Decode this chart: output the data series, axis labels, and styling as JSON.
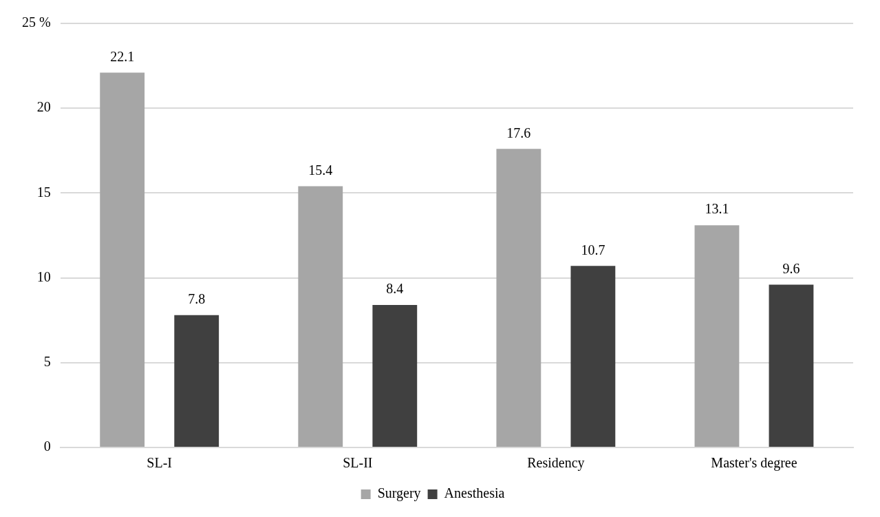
{
  "chart_data": {
    "type": "bar",
    "categories": [
      "SL-I",
      "SL-II",
      "Residency",
      "Master's degree"
    ],
    "series": [
      {
        "name": "Surgery",
        "color": "#a6a6a6",
        "values": [
          22.1,
          15.4,
          17.6,
          13.1
        ]
      },
      {
        "name": "Anesthesia",
        "color": "#404040",
        "values": [
          7.8,
          8.4,
          10.7,
          9.6
        ]
      }
    ],
    "ylim": [
      0,
      25
    ],
    "yticks": [
      0,
      5,
      10,
      15,
      20,
      {
        "value": 25,
        "label": "25 %"
      }
    ],
    "grid": "y",
    "legend": "bottom",
    "data_labels": true
  }
}
